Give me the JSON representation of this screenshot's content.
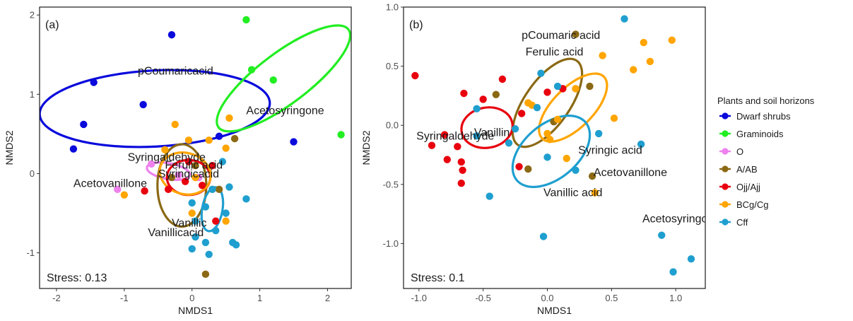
{
  "legend": {
    "title": "Plants and soil horizons",
    "items": [
      {
        "label": "Dwarf shrubs",
        "color": "#0a0adc"
      },
      {
        "label": "Graminoids",
        "color": "#22ee22"
      },
      {
        "label": "O",
        "color": "#ee82ee"
      },
      {
        "label": "A/AB",
        "color": "#8b6914"
      },
      {
        "label": "Ojj/Ajj",
        "color": "#e8000e"
      },
      {
        "label": "BCg/Cg",
        "color": "#ffa500"
      },
      {
        "label": "Cff",
        "color": "#1f9fcf"
      }
    ]
  },
  "chart_data": [
    {
      "type": "scatter",
      "panel_label": "(a)",
      "stress": "Stress: 0.13",
      "xlabel": "NMDS1",
      "ylabel": "NMDS2",
      "xlim": [
        -2.25,
        2.35
      ],
      "ylim": [
        -1.45,
        2.1
      ],
      "xticks": [
        -2,
        -1,
        0,
        1,
        2
      ],
      "yticks": [
        -1,
        0,
        1,
        2
      ],
      "grid": false,
      "vectors": [
        {
          "label": "pCoumaricacid",
          "x": -0.8,
          "y": 1.25
        },
        {
          "label": "Acetosyringone",
          "x": 0.8,
          "y": 0.75
        },
        {
          "label": "Syringaldehyde",
          "x": -0.95,
          "y": 0.16
        },
        {
          "label": "Ferulic acid",
          "x": -0.4,
          "y": 0.06
        },
        {
          "label": "Syringicacid",
          "x": -0.5,
          "y": -0.05
        },
        {
          "label": "Acetovanillone",
          "x": -1.75,
          "y": -0.17
        },
        {
          "label": "Vanillic",
          "x": -0.3,
          "y": -0.67
        },
        {
          "label": "Vanillicacid",
          "x": -0.65,
          "y": -0.79
        }
      ],
      "ellipses": [
        {
          "group": "Dwarf shrubs",
          "cx": -0.55,
          "cy": 0.82,
          "rx": 1.7,
          "ry": 0.48,
          "angle": -3
        },
        {
          "group": "Graminoids",
          "cx": 1.35,
          "cy": 1.2,
          "rx": 1.2,
          "ry": 0.32,
          "angle": -37
        },
        {
          "group": "O",
          "cx": -0.35,
          "cy": 0.03,
          "rx": 0.32,
          "ry": 0.1,
          "angle": 10
        },
        {
          "group": "A/AB",
          "cx": -0.15,
          "cy": -0.15,
          "rx": 0.36,
          "ry": 0.52,
          "angle": 0
        },
        {
          "group": "Ojj/Ajj",
          "cx": -0.05,
          "cy": -0.05,
          "rx": 0.32,
          "ry": 0.22,
          "angle": 0
        },
        {
          "group": "BCg/Cg",
          "cx": -0.1,
          "cy": 0.0,
          "rx": 0.38,
          "ry": 0.26,
          "angle": 15
        },
        {
          "group": "Cff",
          "cx": 0.3,
          "cy": -0.45,
          "rx": 0.15,
          "ry": 0.28,
          "angle": 10
        }
      ],
      "points": [
        {
          "group": "Dwarf shrubs",
          "x": -0.3,
          "y": 1.75
        },
        {
          "group": "Dwarf shrubs",
          "x": -1.45,
          "y": 1.15
        },
        {
          "group": "Dwarf shrubs",
          "x": -0.72,
          "y": 0.87
        },
        {
          "group": "Dwarf shrubs",
          "x": -1.6,
          "y": 0.62
        },
        {
          "group": "Dwarf shrubs",
          "x": -1.75,
          "y": 0.31
        },
        {
          "group": "Dwarf shrubs",
          "x": 0.4,
          "y": 0.47
        },
        {
          "group": "Dwarf shrubs",
          "x": 1.5,
          "y": 0.4
        },
        {
          "group": "Graminoids",
          "x": 0.8,
          "y": 1.94
        },
        {
          "group": "Graminoids",
          "x": 0.88,
          "y": 1.31
        },
        {
          "group": "Graminoids",
          "x": 1.2,
          "y": 1.18
        },
        {
          "group": "Graminoids",
          "x": 2.2,
          "y": 0.49
        },
        {
          "group": "O",
          "x": -1.1,
          "y": -0.2
        },
        {
          "group": "O",
          "x": -0.6,
          "y": 0.12
        },
        {
          "group": "O",
          "x": -0.2,
          "y": -0.02
        },
        {
          "group": "O",
          "x": 0.1,
          "y": -0.05
        },
        {
          "group": "A/AB",
          "x": 0.63,
          "y": 0.44
        },
        {
          "group": "A/AB",
          "x": -0.3,
          "y": -0.05
        },
        {
          "group": "A/AB",
          "x": 0.05,
          "y": 0.1
        },
        {
          "group": "A/AB",
          "x": 0.2,
          "y": -1.27
        },
        {
          "group": "A/AB",
          "x": 0.4,
          "y": -0.2
        },
        {
          "group": "Ojj/Ajj",
          "x": -0.7,
          "y": -0.22
        },
        {
          "group": "Ojj/Ajj",
          "x": -0.35,
          "y": -0.2
        },
        {
          "group": "Ojj/Ajj",
          "x": -0.1,
          "y": -0.1
        },
        {
          "group": "Ojj/Ajj",
          "x": -0.05,
          "y": 0.15
        },
        {
          "group": "Ojj/Ajj",
          "x": 0.15,
          "y": -0.15
        },
        {
          "group": "Ojj/Ajj",
          "x": 0.3,
          "y": 0.1
        },
        {
          "group": "Ojj/Ajj",
          "x": 0.35,
          "y": -0.6
        },
        {
          "group": "BCg/Cg",
          "x": 0.55,
          "y": 0.7
        },
        {
          "group": "BCg/Cg",
          "x": -0.25,
          "y": 0.62
        },
        {
          "group": "BCg/Cg",
          "x": 0.25,
          "y": 0.42
        },
        {
          "group": "BCg/Cg",
          "x": 0.5,
          "y": 0.32
        },
        {
          "group": "BCg/Cg",
          "x": -1.0,
          "y": -0.27
        },
        {
          "group": "BCg/Cg",
          "x": -0.05,
          "y": 0.42
        },
        {
          "group": "BCg/Cg",
          "x": 0.05,
          "y": -0.05
        },
        {
          "group": "BCg/Cg",
          "x": 0.3,
          "y": -0.2
        },
        {
          "group": "BCg/Cg",
          "x": -0.4,
          "y": 0.3
        },
        {
          "group": "BCg/Cg",
          "x": 0.0,
          "y": -0.5
        },
        {
          "group": "BCg/Cg",
          "x": 0.5,
          "y": -0.6
        },
        {
          "group": "Cff",
          "x": 0.45,
          "y": 0.15
        },
        {
          "group": "Cff",
          "x": 0.55,
          "y": -0.17
        },
        {
          "group": "Cff",
          "x": 0.3,
          "y": -0.2
        },
        {
          "group": "Cff",
          "x": 0.8,
          "y": -0.32
        },
        {
          "group": "Cff",
          "x": 0.0,
          "y": -0.37
        },
        {
          "group": "Cff",
          "x": 0.2,
          "y": -0.42
        },
        {
          "group": "Cff",
          "x": 0.5,
          "y": -0.5
        },
        {
          "group": "Cff",
          "x": 0.05,
          "y": -0.6
        },
        {
          "group": "Cff",
          "x": 0.35,
          "y": -0.72
        },
        {
          "group": "Cff",
          "x": 0.05,
          "y": -0.8
        },
        {
          "group": "Cff",
          "x": 0.2,
          "y": -0.87
        },
        {
          "group": "Cff",
          "x": 0.6,
          "y": -0.87
        },
        {
          "group": "Cff",
          "x": 0.65,
          "y": -0.9
        },
        {
          "group": "Cff",
          "x": 0.0,
          "y": -0.95
        },
        {
          "group": "Cff",
          "x": 0.25,
          "y": -1.02
        }
      ]
    },
    {
      "type": "scatter",
      "panel_label": "(b)",
      "stress": "Stress: 0.1",
      "xlabel": "NMDS1",
      "ylabel": "NMDS2",
      "xlim": [
        -1.12,
        1.23
      ],
      "ylim": [
        -1.38,
        1.0
      ],
      "xticks": [
        -1.0,
        -0.5,
        0.0,
        0.5,
        1.0
      ],
      "xtick_labels": [
        "-1.0",
        "-0.5",
        "0.0",
        "0.5",
        "1.0"
      ],
      "yticks": [
        -1.0,
        -0.5,
        0.0,
        0.5,
        1.0
      ],
      "ytick_labels": [
        "-1.0",
        "-0.5",
        "0.0",
        "0.5",
        "1.0"
      ],
      "grid": false,
      "vectors": [
        {
          "label": "pCoumaric acid",
          "x": -0.2,
          "y": 0.73
        },
        {
          "label": "Ferulic acid",
          "x": -0.17,
          "y": 0.59
        },
        {
          "label": "Vanillin",
          "x": -0.57,
          "y": -0.09
        },
        {
          "label": "Syringaldehyde",
          "x": -1.02,
          "y": -0.12
        },
        {
          "label": "Syringic acid",
          "x": 0.24,
          "y": -0.24
        },
        {
          "label": "Acetovanillone",
          "x": 0.36,
          "y": -0.43
        },
        {
          "label": "Vanillic acid",
          "x": -0.03,
          "y": -0.6
        },
        {
          "label": "Acetosyringone",
          "x": 0.74,
          "y": -0.82
        }
      ],
      "ellipses": [
        {
          "group": "A/AB",
          "cx": 0.0,
          "cy": 0.19,
          "rx": 0.4,
          "ry": 0.19,
          "angle": -55
        },
        {
          "group": "Ojj/Ajj",
          "cx": -0.47,
          "cy": -0.02,
          "rx": 0.2,
          "ry": 0.17,
          "angle": -10
        },
        {
          "group": "BCg/Cg",
          "cx": 0.2,
          "cy": 0.15,
          "rx": 0.34,
          "ry": 0.17,
          "angle": -45
        },
        {
          "group": "Cff",
          "cx": 0.03,
          "cy": -0.22,
          "rx": 0.35,
          "ry": 0.23,
          "angle": -40
        }
      ],
      "points": [
        {
          "group": "A/AB",
          "x": 0.22,
          "y": 0.77
        },
        {
          "group": "A/AB",
          "x": 0.33,
          "y": 0.33
        },
        {
          "group": "A/AB",
          "x": -0.4,
          "y": 0.26
        },
        {
          "group": "A/AB",
          "x": 0.05,
          "y": 0.03
        },
        {
          "group": "A/AB",
          "x": -0.15,
          "y": -0.37
        },
        {
          "group": "A/AB",
          "x": 0.35,
          "y": -0.43
        },
        {
          "group": "Ojj/Ajj",
          "x": -1.03,
          "y": 0.42
        },
        {
          "group": "Ojj/Ajj",
          "x": -0.35,
          "y": 0.39
        },
        {
          "group": "Ojj/Ajj",
          "x": -0.65,
          "y": 0.27
        },
        {
          "group": "Ojj/Ajj",
          "x": -0.5,
          "y": 0.22
        },
        {
          "group": "Ojj/Ajj",
          "x": 0.0,
          "y": 0.28
        },
        {
          "group": "Ojj/Ajj",
          "x": 0.12,
          "y": 0.31
        },
        {
          "group": "Ojj/Ajj",
          "x": -0.2,
          "y": 0.1
        },
        {
          "group": "Ojj/Ajj",
          "x": -0.8,
          "y": -0.08
        },
        {
          "group": "Ojj/Ajj",
          "x": -0.9,
          "y": -0.17
        },
        {
          "group": "Ojj/Ajj",
          "x": -0.7,
          "y": -0.18
        },
        {
          "group": "Ojj/Ajj",
          "x": -0.78,
          "y": -0.29
        },
        {
          "group": "Ojj/Ajj",
          "x": -0.67,
          "y": -0.31
        },
        {
          "group": "Ojj/Ajj",
          "x": -0.66,
          "y": -0.38
        },
        {
          "group": "Ojj/Ajj",
          "x": -0.67,
          "y": -0.49
        },
        {
          "group": "Ojj/Ajj",
          "x": -0.22,
          "y": -0.35
        },
        {
          "group": "BCg/Cg",
          "x": 0.75,
          "y": 0.7
        },
        {
          "group": "BCg/Cg",
          "x": 0.97,
          "y": 0.72
        },
        {
          "group": "BCg/Cg",
          "x": 0.43,
          "y": 0.59
        },
        {
          "group": "BCg/Cg",
          "x": 0.8,
          "y": 0.54
        },
        {
          "group": "BCg/Cg",
          "x": 0.67,
          "y": 0.47
        },
        {
          "group": "BCg/Cg",
          "x": 0.22,
          "y": 0.31
        },
        {
          "group": "BCg/Cg",
          "x": -0.15,
          "y": 0.19
        },
        {
          "group": "BCg/Cg",
          "x": -0.12,
          "y": 0.17
        },
        {
          "group": "BCg/Cg",
          "x": 0.52,
          "y": 0.06
        },
        {
          "group": "BCg/Cg",
          "x": 0.08,
          "y": 0.05
        },
        {
          "group": "BCg/Cg",
          "x": 0.0,
          "y": -0.07
        },
        {
          "group": "BCg/Cg",
          "x": 0.02,
          "y": -0.12
        },
        {
          "group": "BCg/Cg",
          "x": 0.15,
          "y": -0.28
        },
        {
          "group": "BCg/Cg",
          "x": 0.37,
          "y": -0.57
        },
        {
          "group": "Cff",
          "x": 0.6,
          "y": 0.9
        },
        {
          "group": "Cff",
          "x": -0.05,
          "y": 0.44
        },
        {
          "group": "Cff",
          "x": 0.08,
          "y": 0.33
        },
        {
          "group": "Cff",
          "x": -0.08,
          "y": 0.15
        },
        {
          "group": "Cff",
          "x": -0.55,
          "y": 0.14
        },
        {
          "group": "Cff",
          "x": -0.25,
          "y": -0.03
        },
        {
          "group": "Cff",
          "x": 0.4,
          "y": -0.07
        },
        {
          "group": "Cff",
          "x": -0.55,
          "y": -0.09
        },
        {
          "group": "Cff",
          "x": 0.73,
          "y": -0.16
        },
        {
          "group": "Cff",
          "x": 0.0,
          "y": -0.27
        },
        {
          "group": "Cff",
          "x": -0.3,
          "y": -0.15
        },
        {
          "group": "Cff",
          "x": 0.22,
          "y": -0.38
        },
        {
          "group": "Cff",
          "x": -0.45,
          "y": -0.6
        },
        {
          "group": "Cff",
          "x": 0.89,
          "y": -0.93
        },
        {
          "group": "Cff",
          "x": -0.03,
          "y": -0.94
        },
        {
          "group": "Cff",
          "x": 1.12,
          "y": -1.13
        },
        {
          "group": "Cff",
          "x": 0.98,
          "y": -1.24
        }
      ]
    }
  ]
}
